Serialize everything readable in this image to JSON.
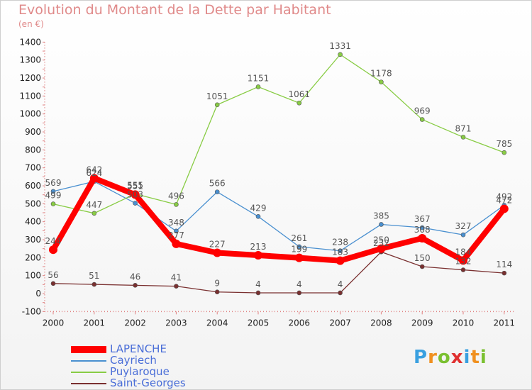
{
  "chart_data": {
    "type": "line",
    "title": "Evolution du Montant de la Dette par Habitant",
    "subtitle": "(en €)",
    "categories": [
      "2000",
      "2001",
      "2002",
      "2003",
      "2004",
      "2005",
      "2006",
      "2007",
      "2008",
      "2009",
      "2010",
      "2011"
    ],
    "y_ticks": [
      "1400",
      "1300",
      "1200",
      "1100",
      "1000",
      "900",
      "800",
      "700",
      "600",
      "500",
      "400",
      "300",
      "200",
      "100",
      "0",
      "-100"
    ],
    "ylim": [
      -100,
      1400
    ],
    "grid": false,
    "legend_position": "bottom-left",
    "series": [
      {
        "name": "LAPENCHE",
        "color": "#ff0000",
        "values": [
          244,
          642,
          551,
          277,
          227,
          213,
          199,
          183,
          250,
          308,
          184,
          472
        ],
        "labels": [
          "244",
          "642",
          "551",
          "277",
          "227",
          "213",
          "199",
          "183",
          "250",
          "308",
          "184",
          "472"
        ]
      },
      {
        "name": "Cayriech",
        "color": "#4a90d0",
        "values": [
          569,
          624,
          503,
          348,
          566,
          429,
          261,
          238,
          385,
          367,
          327,
          492
        ],
        "labels": [
          "569",
          "624",
          "503",
          "348",
          "566",
          "429",
          "261",
          "238",
          "385",
          "367",
          "327",
          "492"
        ]
      },
      {
        "name": "Puylaroque",
        "color": "#88cc44",
        "values": [
          499,
          447,
          555,
          496,
          1051,
          1151,
          1061,
          1331,
          1178,
          969,
          871,
          785
        ],
        "labels": [
          "499",
          "447",
          "555",
          "496",
          "1051",
          "1151",
          "1061",
          "1331",
          "1178",
          "969",
          "871",
          "785"
        ]
      },
      {
        "name": "Saint-Georges",
        "color": "#7a3030",
        "values": [
          56,
          51,
          46,
          41,
          9,
          4,
          4,
          4,
          232,
          150,
          132,
          114
        ],
        "labels": [
          "56",
          "51",
          "46",
          "41",
          "9",
          "4",
          "4",
          "4",
          "232",
          "150",
          "132",
          "114"
        ]
      }
    ]
  },
  "legend": {
    "items": [
      "LAPENCHE",
      "Cayriech",
      "Puylaroque",
      "Saint-Georges"
    ],
    "text_color": "#4a6ed8"
  },
  "logo": {
    "letters": [
      "P",
      "r",
      "o",
      "x",
      "i",
      "t",
      "i"
    ],
    "colors": [
      "#3aa0e0",
      "#f09020",
      "#7ac030",
      "#e03030",
      "#3aa0e0",
      "#f09020",
      "#7ac030"
    ]
  }
}
